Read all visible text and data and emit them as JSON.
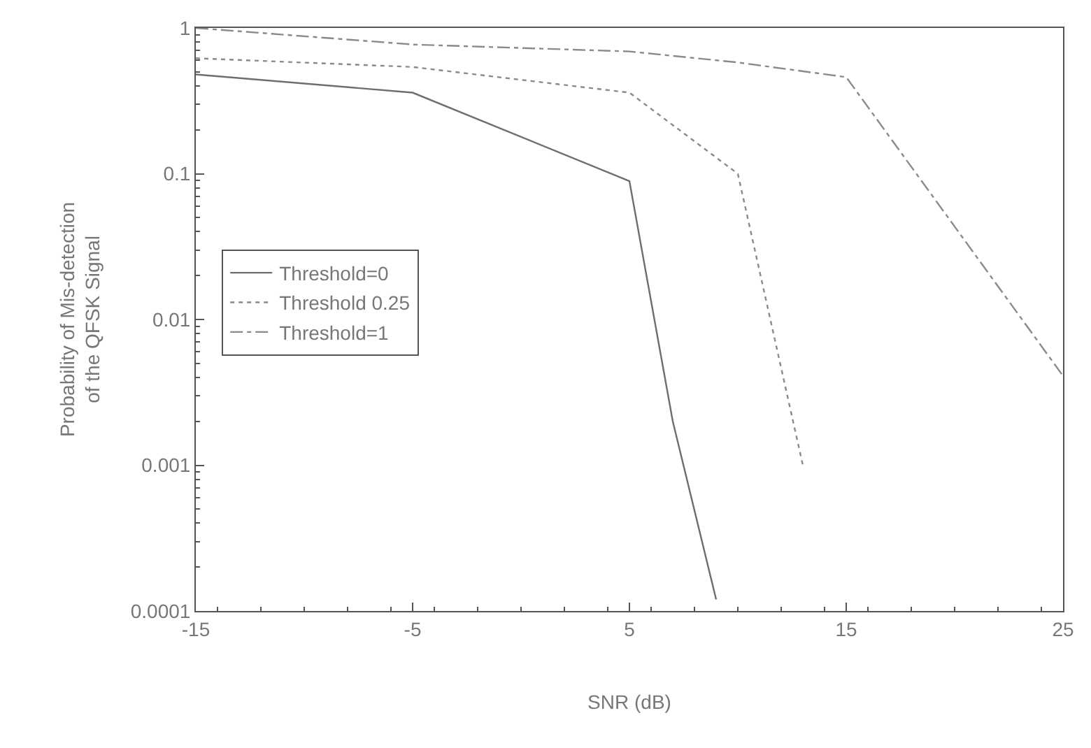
{
  "chart_data": {
    "type": "line",
    "xlabel": "SNR (dB)",
    "ylabel": "Probability of Mis-detection\nof the QFSK Signal",
    "series": [
      {
        "name": "Threshold=0",
        "color": "#6e6e6e",
        "line_style": "solid",
        "x": [
          -15,
          -5,
          5,
          7,
          9
        ],
        "values": [
          0.48,
          0.36,
          0.089,
          0.002,
          0.00012
        ]
      },
      {
        "name": "Threshold 0.25",
        "color": "#8a8a8a",
        "line_style": "dotted",
        "x": [
          -15,
          -5,
          5,
          10,
          13
        ],
        "values": [
          0.62,
          0.54,
          0.36,
          0.1,
          0.001
        ]
      },
      {
        "name": "Threshold=1",
        "color": "#8a8a8a",
        "line_style": "dashdot",
        "x": [
          -15,
          -5,
          5,
          10,
          15,
          25
        ],
        "values": [
          1.0,
          0.77,
          0.69,
          0.58,
          0.46,
          0.0041
        ]
      }
    ],
    "log": "y",
    "xlim": [
      -15,
      25
    ],
    "xticks": [
      -15,
      -5,
      5,
      15,
      25
    ],
    "ylim": [
      0.0001,
      1
    ],
    "yticks": [
      {
        "value": 0.0001,
        "label": "0.0001"
      },
      {
        "value": 0.001,
        "label": "0.001"
      },
      {
        "value": 0.01,
        "label": "0.01"
      },
      {
        "value": 0.1,
        "label": "0.1"
      },
      {
        "value": 1,
        "label": "1"
      }
    ],
    "legend": "left",
    "marker": "none"
  }
}
